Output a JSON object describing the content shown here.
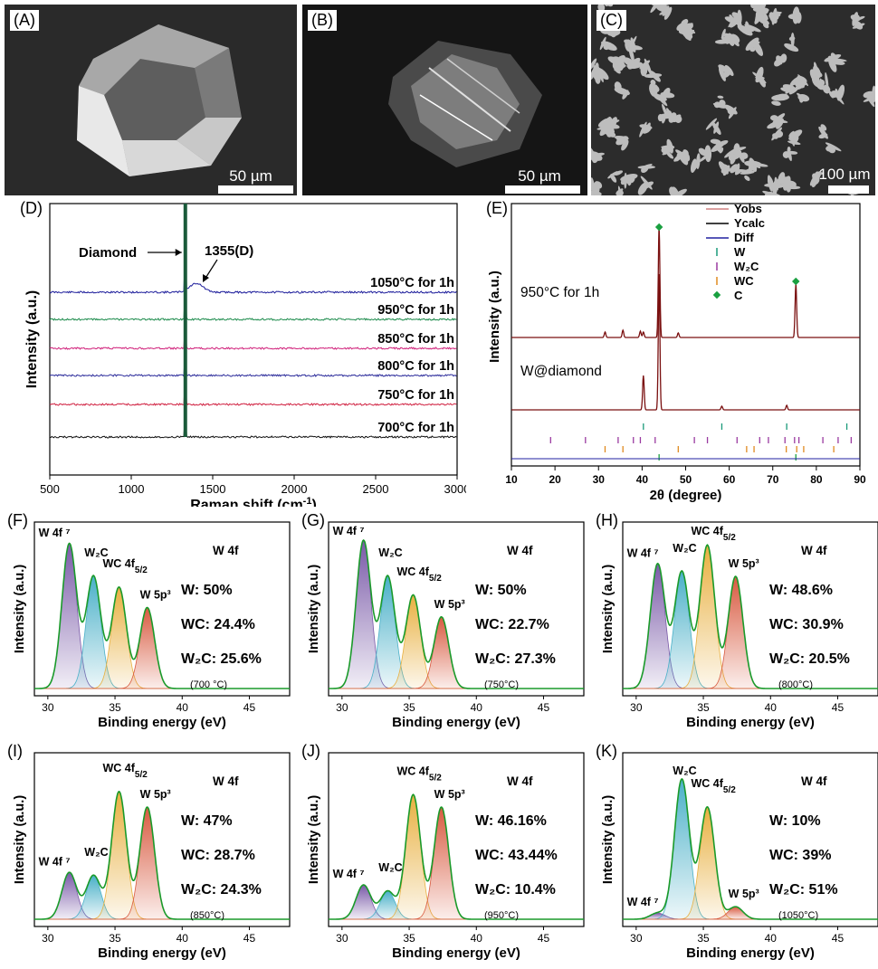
{
  "panels": {
    "A": {
      "label": "(A)",
      "scale": "50 µm"
    },
    "B": {
      "label": "(B)",
      "scale": "50 µm"
    },
    "C": {
      "label": "(C)",
      "scale": "100 µm"
    }
  },
  "raman": {
    "label": "(D)",
    "xlabel": "Raman shift (cm",
    "xlabel_sup": "-1",
    "xlabel_end": ")",
    "ylabel": "Intensity (a.u.)",
    "xticks": [
      "500",
      "1000",
      "1500",
      "2000",
      "2500",
      "3000"
    ],
    "annot_diamond": "Diamond",
    "annot_d": "1355(D)",
    "traces": [
      {
        "label": "1050°C for 1h",
        "color": "#1a1a9a"
      },
      {
        "label": "950°C for 1h",
        "color": "#1a8a4a"
      },
      {
        "label": "850°C for 1h",
        "color": "#d0207a"
      },
      {
        "label": "800°C for 1h",
        "color": "#2a2a9a"
      },
      {
        "label": "750°C for 1h",
        "color": "#d02040"
      },
      {
        "label": "700°C for 1h",
        "color": "#111111"
      }
    ]
  },
  "xrd": {
    "label": "(E)",
    "xlabel": "2θ (degree)",
    "ylabel": "Intensity (a.u.)",
    "xticks": [
      "10",
      "20",
      "30",
      "40",
      "50",
      "60",
      "70",
      "80",
      "90"
    ],
    "sample1": "950°C for 1h",
    "sample2": "W@diamond",
    "legend": [
      {
        "name": "Yobs",
        "color": "#d08080"
      },
      {
        "name": "Ycalc",
        "color": "#000000"
      },
      {
        "name": "Diff",
        "color": "#2020a0"
      },
      {
        "name": "W",
        "color": "#1a9a7a"
      },
      {
        "name": "W₂C",
        "color": "#9a3aa0"
      },
      {
        "name": "WC",
        "color": "#e08a20"
      },
      {
        "name": "C",
        "color": "#1aa040"
      }
    ]
  },
  "xps": [
    {
      "label": "(F)",
      "title": "W 4f",
      "w": "W: 50%",
      "wc": "WC: 24.4%",
      "w2c": "W₂C: 25.6%",
      "temp": "(700 °C)"
    },
    {
      "label": "(G)",
      "title": "W 4f",
      "w": "W: 50%",
      "wc": "WC: 22.7%",
      "w2c": "W₂C: 27.3%",
      "temp": "(750°C)"
    },
    {
      "label": "(H)",
      "title": "W 4f",
      "w": "W: 48.6%",
      "wc": "WC: 30.9%",
      "w2c": "W₂C: 20.5%",
      "temp": "(800°C)"
    },
    {
      "label": "(I)",
      "title": "W 4f",
      "w": "W: 47%",
      "wc": "WC: 28.7%",
      "w2c": "W₂C: 24.3%",
      "temp": "(850°C)"
    },
    {
      "label": "(J)",
      "title": "W 4f",
      "w": "W: 46.16%",
      "wc": "WC: 43.44%",
      "w2c": "W₂C: 10.4%",
      "temp": "(950°C)"
    },
    {
      "label": "(K)",
      "title": "W 4f",
      "w": "W: 10%",
      "wc": "WC: 39%",
      "w2c": "W₂C: 51%",
      "temp": "(1050°C)"
    }
  ],
  "xps_common": {
    "xlabel": "Binding energy (eV)",
    "ylabel": "Intensity (a.u.)",
    "xticks": [
      "30",
      "35",
      "40",
      "45"
    ],
    "peak_w": "W 4f ⁷",
    "peak_w2c": "W₂C",
    "peak_wc": "WC 4f",
    "peak_wc_sub": "5/2",
    "peak_w5p": "W 5p³",
    "colors": {
      "w": "#7a5aa8",
      "w2c": "#4ab0c8",
      "wc": "#e8b040",
      "w5p": "#d85a40",
      "env": "#1a9a2a"
    }
  },
  "chart_data": [
    {
      "type": "line",
      "title": "",
      "xlabel": "Raman shift (cm-1)",
      "ylabel": "Intensity (a.u.)",
      "xlim": [
        500,
        3000
      ],
      "series": [
        {
          "name": "1050°C for 1h",
          "peaks": [
            1332,
            1355
          ]
        },
        {
          "name": "950°C for 1h",
          "peaks": [
            1332
          ]
        },
        {
          "name": "850°C for 1h",
          "peaks": [
            1332
          ]
        },
        {
          "name": "800°C for 1h",
          "peaks": [
            1332
          ]
        },
        {
          "name": "750°C for 1h",
          "peaks": [
            1332
          ]
        },
        {
          "name": "700°C for 1h",
          "peaks": [
            1332
          ]
        }
      ]
    },
    {
      "type": "line",
      "xlabel": "2θ (degree)",
      "ylabel": "Intensity (a.u.)",
      "xlim": [
        10,
        90
      ],
      "series": [
        {
          "name": "950°C for 1h",
          "peaks": [
            31.5,
            35.6,
            39.6,
            40.3,
            43.9,
            48.3,
            75.3
          ]
        },
        {
          "name": "W@diamond",
          "peaks": [
            40.3,
            43.9,
            58.3,
            73.2
          ]
        }
      ]
    },
    {
      "type": "area",
      "xlabel": "Binding energy (eV)",
      "ylabel": "Intensity (a.u.)",
      "xlim": [
        29,
        48
      ],
      "series": [
        {
          "name": "700 °C",
          "composition": {
            "W": 50,
            "WC": 24.4,
            "W2C": 25.6
          }
        },
        {
          "name": "750 °C",
          "composition": {
            "W": 50,
            "WC": 22.7,
            "W2C": 27.3
          }
        },
        {
          "name": "800 °C",
          "composition": {
            "W": 48.6,
            "WC": 30.9,
            "W2C": 20.5
          }
        },
        {
          "name": "850 °C",
          "composition": {
            "W": 47,
            "WC": 28.7,
            "W2C": 24.3
          }
        },
        {
          "name": "950 °C",
          "composition": {
            "W": 46.16,
            "WC": 43.44,
            "W2C": 10.4
          }
        },
        {
          "name": "1050 °C",
          "composition": {
            "W": 10,
            "WC": 39,
            "W2C": 51
          }
        }
      ]
    }
  ]
}
